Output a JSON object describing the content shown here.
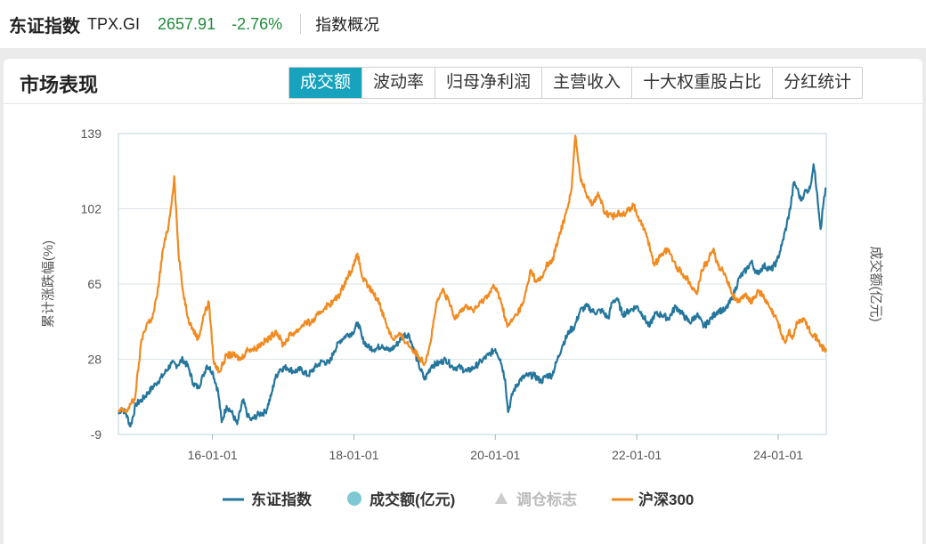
{
  "header": {
    "index_name": "东证指数",
    "index_code": "TPX.GI",
    "price": "2657.91",
    "change_pct": "-2.76%",
    "overview_label": "指数概况"
  },
  "panel": {
    "title": "市场表现",
    "tabs": [
      {
        "label": "成交额",
        "active": true
      },
      {
        "label": "波动率",
        "active": false
      },
      {
        "label": "归母净利润",
        "active": false
      },
      {
        "label": "主营收入",
        "active": false
      },
      {
        "label": "十大权重股占比",
        "active": false
      },
      {
        "label": "分红统计",
        "active": false
      }
    ]
  },
  "colors": {
    "topix": "#25769c",
    "csi300": "#f18a1f",
    "turnover": "#7ec8d3",
    "rebalance": "#cccccc",
    "up_down": "#1e8a3a"
  },
  "chart_data": {
    "type": "line",
    "x_start": "2014-09",
    "x_end": "2024-08",
    "xticks": [
      "16-01-01",
      "18-01-01",
      "20-01-01",
      "22-01-01",
      "24-01-01"
    ],
    "ylabel": "累计涨跌幅(%)",
    "y2label": "成交额(亿元)",
    "yticks": [
      -9,
      28,
      65,
      102,
      139
    ],
    "ylim": [
      -9,
      139
    ],
    "legend": [
      {
        "name": "东证指数",
        "marker": "line",
        "muted": false
      },
      {
        "name": "成交额(亿元)",
        "marker": "circle",
        "muted": false
      },
      {
        "name": "调仓标志",
        "marker": "triangle",
        "muted": true
      },
      {
        "name": "沪深300",
        "marker": "line",
        "muted": false
      }
    ],
    "series": [
      {
        "name": "东证指数",
        "points": [
          [
            2014.67,
            1
          ],
          [
            2014.72,
            4
          ],
          [
            2014.78,
            1
          ],
          [
            2014.84,
            -5
          ],
          [
            2014.92,
            6
          ],
          [
            2015.0,
            8
          ],
          [
            2015.1,
            12
          ],
          [
            2015.2,
            16
          ],
          [
            2015.3,
            20
          ],
          [
            2015.42,
            26
          ],
          [
            2015.5,
            25
          ],
          [
            2015.58,
            28
          ],
          [
            2015.66,
            24
          ],
          [
            2015.73,
            16
          ],
          [
            2015.8,
            14
          ],
          [
            2015.87,
            20
          ],
          [
            2015.92,
            25
          ],
          [
            2016.0,
            22
          ],
          [
            2016.08,
            12
          ],
          [
            2016.13,
            -3
          ],
          [
            2016.2,
            5
          ],
          [
            2016.27,
            2
          ],
          [
            2016.35,
            -4
          ],
          [
            2016.43,
            8
          ],
          [
            2016.5,
            0
          ],
          [
            2016.55,
            -2
          ],
          [
            2016.65,
            1
          ],
          [
            2016.75,
            2
          ],
          [
            2016.83,
            10
          ],
          [
            2016.88,
            18
          ],
          [
            2016.95,
            23
          ],
          [
            2017.05,
            24
          ],
          [
            2017.15,
            22
          ],
          [
            2017.25,
            23
          ],
          [
            2017.35,
            20
          ],
          [
            2017.45,
            24
          ],
          [
            2017.55,
            27
          ],
          [
            2017.65,
            26
          ],
          [
            2017.72,
            32
          ],
          [
            2017.8,
            37
          ],
          [
            2017.9,
            40
          ],
          [
            2017.98,
            41
          ],
          [
            2018.06,
            46
          ],
          [
            2018.12,
            38
          ],
          [
            2018.2,
            34
          ],
          [
            2018.3,
            33
          ],
          [
            2018.4,
            35
          ],
          [
            2018.5,
            32
          ],
          [
            2018.6,
            35
          ],
          [
            2018.7,
            40
          ],
          [
            2018.78,
            40
          ],
          [
            2018.85,
            32
          ],
          [
            2018.92,
            25
          ],
          [
            2019.0,
            18
          ],
          [
            2019.1,
            25
          ],
          [
            2019.2,
            26
          ],
          [
            2019.3,
            28
          ],
          [
            2019.4,
            24
          ],
          [
            2019.5,
            24
          ],
          [
            2019.6,
            22
          ],
          [
            2019.7,
            24
          ],
          [
            2019.8,
            27
          ],
          [
            2019.9,
            30
          ],
          [
            2020.0,
            33
          ],
          [
            2020.07,
            28
          ],
          [
            2020.14,
            18
          ],
          [
            2020.18,
            2
          ],
          [
            2020.25,
            12
          ],
          [
            2020.35,
            18
          ],
          [
            2020.45,
            20
          ],
          [
            2020.55,
            20
          ],
          [
            2020.65,
            17
          ],
          [
            2020.72,
            20
          ],
          [
            2020.8,
            20
          ],
          [
            2020.87,
            27
          ],
          [
            2020.95,
            35
          ],
          [
            2021.05,
            42
          ],
          [
            2021.12,
            44
          ],
          [
            2021.2,
            52
          ],
          [
            2021.3,
            54
          ],
          [
            2021.4,
            51
          ],
          [
            2021.5,
            52
          ],
          [
            2021.6,
            48
          ],
          [
            2021.65,
            56
          ],
          [
            2021.72,
            58
          ],
          [
            2021.8,
            50
          ],
          [
            2021.9,
            52
          ],
          [
            2022.0,
            54
          ],
          [
            2022.08,
            50
          ],
          [
            2022.18,
            44
          ],
          [
            2022.25,
            50
          ],
          [
            2022.35,
            50
          ],
          [
            2022.45,
            48
          ],
          [
            2022.55,
            54
          ],
          [
            2022.65,
            50
          ],
          [
            2022.75,
            46
          ],
          [
            2022.85,
            50
          ],
          [
            2022.95,
            44
          ],
          [
            2023.05,
            48
          ],
          [
            2023.15,
            52
          ],
          [
            2023.25,
            52
          ],
          [
            2023.35,
            58
          ],
          [
            2023.45,
            68
          ],
          [
            2023.55,
            72
          ],
          [
            2023.62,
            76
          ],
          [
            2023.7,
            70
          ],
          [
            2023.8,
            74
          ],
          [
            2023.9,
            72
          ],
          [
            2023.98,
            76
          ],
          [
            2024.05,
            84
          ],
          [
            2024.12,
            94
          ],
          [
            2024.18,
            104
          ],
          [
            2024.22,
            115
          ],
          [
            2024.27,
            112
          ],
          [
            2024.32,
            106
          ],
          [
            2024.37,
            110
          ],
          [
            2024.45,
            112
          ],
          [
            2024.5,
            124
          ],
          [
            2024.55,
            110
          ],
          [
            2024.6,
            92
          ],
          [
            2024.65,
            108
          ],
          [
            2024.68,
            112
          ]
        ]
      },
      {
        "name": "沪深300",
        "points": [
          [
            2014.67,
            2
          ],
          [
            2014.72,
            3
          ],
          [
            2014.78,
            2
          ],
          [
            2014.84,
            6
          ],
          [
            2014.9,
            8
          ],
          [
            2014.96,
            26
          ],
          [
            2015.0,
            38
          ],
          [
            2015.08,
            46
          ],
          [
            2015.15,
            48
          ],
          [
            2015.22,
            60
          ],
          [
            2015.3,
            82
          ],
          [
            2015.38,
            94
          ],
          [
            2015.43,
            108
          ],
          [
            2015.46,
            118
          ],
          [
            2015.52,
            80
          ],
          [
            2015.58,
            62
          ],
          [
            2015.66,
            48
          ],
          [
            2015.73,
            42
          ],
          [
            2015.8,
            38
          ],
          [
            2015.88,
            50
          ],
          [
            2015.95,
            56
          ],
          [
            2016.02,
            26
          ],
          [
            2016.1,
            22
          ],
          [
            2016.2,
            30
          ],
          [
            2016.3,
            30
          ],
          [
            2016.4,
            28
          ],
          [
            2016.5,
            33
          ],
          [
            2016.6,
            33
          ],
          [
            2016.7,
            36
          ],
          [
            2016.8,
            38
          ],
          [
            2016.9,
            42
          ],
          [
            2017.0,
            35
          ],
          [
            2017.1,
            40
          ],
          [
            2017.2,
            42
          ],
          [
            2017.3,
            46
          ],
          [
            2017.4,
            46
          ],
          [
            2017.5,
            50
          ],
          [
            2017.6,
            54
          ],
          [
            2017.7,
            56
          ],
          [
            2017.8,
            60
          ],
          [
            2017.9,
            68
          ],
          [
            2018.0,
            74
          ],
          [
            2018.05,
            80
          ],
          [
            2018.12,
            68
          ],
          [
            2018.2,
            64
          ],
          [
            2018.28,
            60
          ],
          [
            2018.36,
            56
          ],
          [
            2018.45,
            46
          ],
          [
            2018.55,
            38
          ],
          [
            2018.65,
            40
          ],
          [
            2018.75,
            36
          ],
          [
            2018.85,
            32
          ],
          [
            2018.95,
            28
          ],
          [
            2019.0,
            26
          ],
          [
            2019.08,
            36
          ],
          [
            2019.16,
            54
          ],
          [
            2019.25,
            62
          ],
          [
            2019.35,
            56
          ],
          [
            2019.42,
            48
          ],
          [
            2019.5,
            52
          ],
          [
            2019.6,
            54
          ],
          [
            2019.7,
            52
          ],
          [
            2019.8,
            56
          ],
          [
            2019.9,
            60
          ],
          [
            2019.98,
            64
          ],
          [
            2020.07,
            58
          ],
          [
            2020.17,
            44
          ],
          [
            2020.3,
            50
          ],
          [
            2020.4,
            56
          ],
          [
            2020.5,
            72
          ],
          [
            2020.58,
            66
          ],
          [
            2020.66,
            68
          ],
          [
            2020.72,
            74
          ],
          [
            2020.8,
            76
          ],
          [
            2020.9,
            88
          ],
          [
            2021.0,
            100
          ],
          [
            2021.08,
            112
          ],
          [
            2021.13,
            138
          ],
          [
            2021.2,
            118
          ],
          [
            2021.28,
            110
          ],
          [
            2021.38,
            104
          ],
          [
            2021.45,
            110
          ],
          [
            2021.55,
            100
          ],
          [
            2021.65,
            98
          ],
          [
            2021.75,
            100
          ],
          [
            2021.85,
            100
          ],
          [
            2021.95,
            104
          ],
          [
            2022.05,
            96
          ],
          [
            2022.15,
            88
          ],
          [
            2022.25,
            74
          ],
          [
            2022.35,
            80
          ],
          [
            2022.45,
            82
          ],
          [
            2022.55,
            74
          ],
          [
            2022.65,
            70
          ],
          [
            2022.75,
            66
          ],
          [
            2022.85,
            60
          ],
          [
            2022.92,
            72
          ],
          [
            2023.0,
            76
          ],
          [
            2023.08,
            82
          ],
          [
            2023.15,
            74
          ],
          [
            2023.25,
            70
          ],
          [
            2023.35,
            60
          ],
          [
            2023.45,
            56
          ],
          [
            2023.55,
            60
          ],
          [
            2023.62,
            56
          ],
          [
            2023.72,
            62
          ],
          [
            2023.8,
            58
          ],
          [
            2023.9,
            52
          ],
          [
            2024.0,
            46
          ],
          [
            2024.05,
            40
          ],
          [
            2024.1,
            36
          ],
          [
            2024.15,
            42
          ],
          [
            2024.2,
            38
          ],
          [
            2024.27,
            46
          ],
          [
            2024.35,
            48
          ],
          [
            2024.42,
            44
          ],
          [
            2024.5,
            40
          ],
          [
            2024.55,
            38
          ],
          [
            2024.62,
            34
          ],
          [
            2024.68,
            32
          ]
        ]
      }
    ]
  }
}
